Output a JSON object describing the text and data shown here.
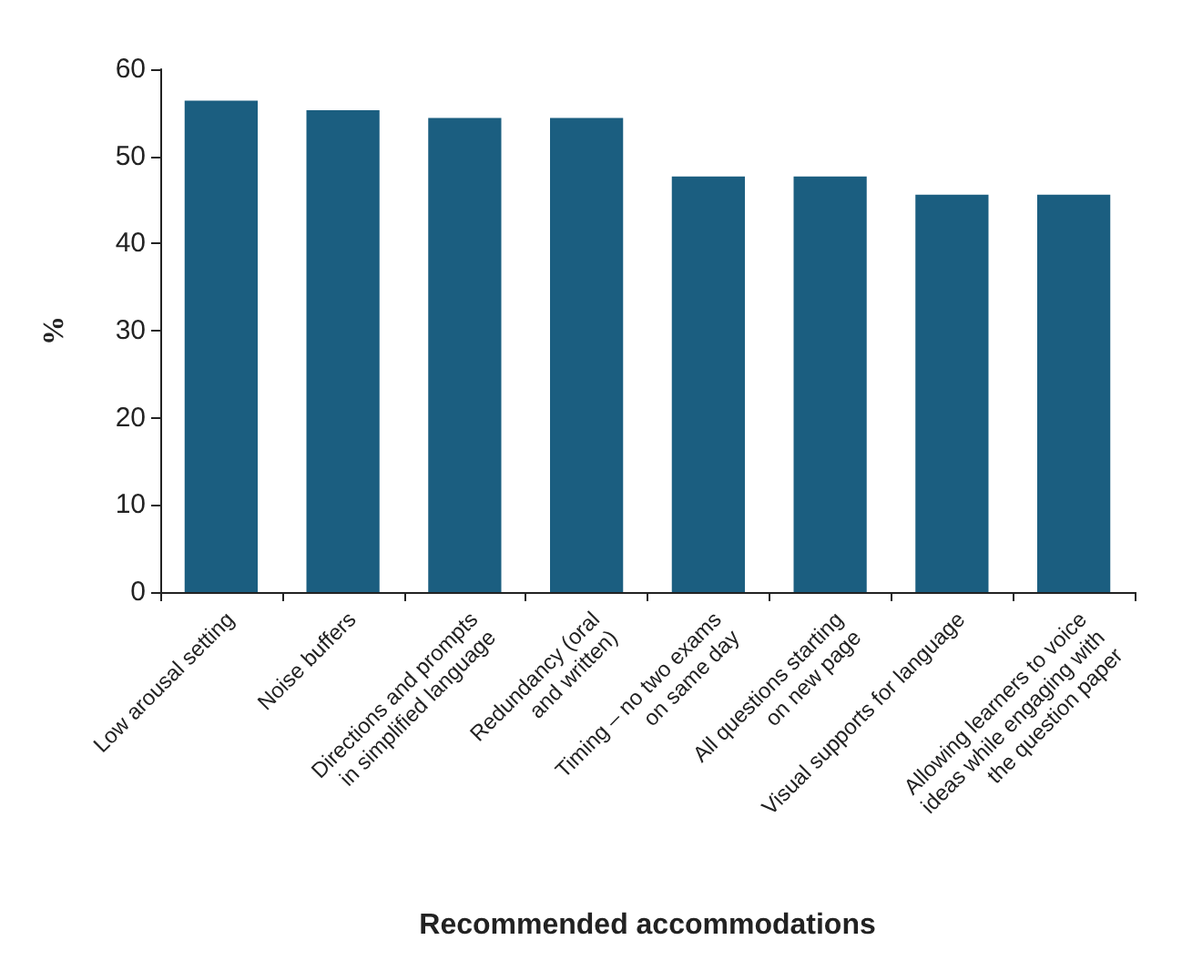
{
  "chart_data": {
    "type": "bar",
    "xlabel": "Recommended accommodations",
    "ylabel": "%",
    "categories": [
      "Low arousal setting",
      "Noise buffers",
      "Directions and prompts\nin simplified language",
      "Redundancy (oral\nand written)",
      "Timing – no two exams\non same day",
      "All questions starting\non new page",
      "Visual supports for language",
      "Allowing learners to voice\nideas while engaging with\nthe question paper"
    ],
    "values": [
      56.4,
      55.3,
      54.4,
      54.4,
      47.7,
      47.7,
      45.6,
      45.6
    ],
    "color": "#1b5e80",
    "ylim": [
      0,
      60
    ],
    "yticks": [
      0,
      10,
      20,
      30,
      40,
      50,
      60
    ],
    "grid": false
  }
}
